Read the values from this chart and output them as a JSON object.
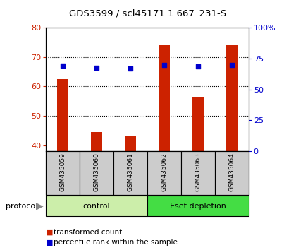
{
  "title": "GDS3599 / scl45171.1.667_231-S",
  "samples": [
    "GSM435059",
    "GSM435060",
    "GSM435061",
    "GSM435062",
    "GSM435063",
    "GSM435064"
  ],
  "transformed_count": [
    62.5,
    44.5,
    43.0,
    74.0,
    56.5,
    74.0
  ],
  "percentile_rank": [
    69.0,
    67.5,
    67.0,
    69.5,
    68.5,
    69.5
  ],
  "ylim_left": [
    38,
    80
  ],
  "ylim_right": [
    0,
    100
  ],
  "yticks_left": [
    40,
    50,
    60,
    70,
    80
  ],
  "yticks_right": [
    0,
    25,
    50,
    75,
    100
  ],
  "ytick_labels_right": [
    "0",
    "25",
    "50",
    "75",
    "100%"
  ],
  "grid_lines": [
    50,
    60,
    70
  ],
  "bar_color": "#cc2200",
  "dot_color": "#0000cc",
  "bar_width": 0.35,
  "groups": [
    {
      "label": "control",
      "color": "#cceeaa"
    },
    {
      "label": "Eset depletion",
      "color": "#44dd44"
    }
  ],
  "protocol_label": "protocol",
  "legend_bar_label": "transformed count",
  "legend_dot_label": "percentile rank within the sample",
  "tick_color_left": "#cc2200",
  "tick_color_right": "#0000cc",
  "background_color": "#ffffff",
  "plot_bg": "#ffffff",
  "sample_box_color": "#cccccc"
}
